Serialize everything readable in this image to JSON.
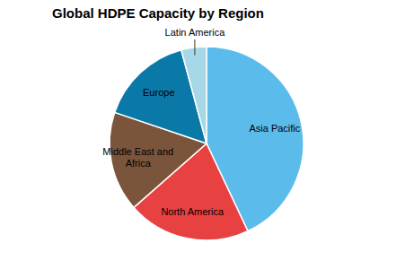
{
  "chart_data": {
    "type": "pie",
    "title": "Global HDPE Capacity by Region",
    "categories": [
      "Asia Pacific",
      "North America",
      "Middle East and Africa",
      "Europe",
      "Latin America"
    ],
    "values": [
      43,
      20.5,
      16.7,
      15.6,
      4.2
    ],
    "colors": [
      "#5bbcec",
      "#e84142",
      "#7a553b",
      "#0b79a8",
      "#a7d8e7"
    ]
  }
}
